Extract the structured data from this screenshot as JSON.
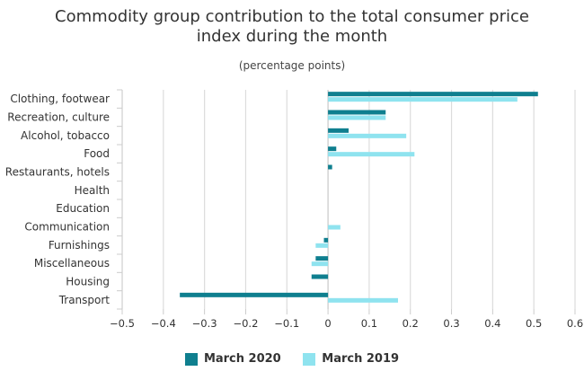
{
  "chart_data": {
    "type": "bar",
    "orientation": "horizontal",
    "title_lines": [
      "Commodity group contribution to the total consumer price",
      "index during the month"
    ],
    "subtitle": "(percentage points)",
    "categories": [
      "Clothing, footwear",
      "Recreation, culture",
      "Alcohol, tobacco",
      "Food",
      "Restaurants, hotels",
      "Health",
      "Education",
      "Communication",
      "Furnishings",
      "Miscellaneous",
      "Housing",
      "Transport"
    ],
    "series": [
      {
        "name": "March 2020",
        "color": "#0f7f8f",
        "values": [
          0.51,
          0.14,
          0.05,
          0.02,
          0.01,
          0.0,
          0.0,
          0.0,
          -0.01,
          -0.03,
          -0.04,
          -0.36
        ]
      },
      {
        "name": "March 2019",
        "color": "#8fe3ef",
        "values": [
          0.46,
          0.14,
          0.19,
          0.21,
          0.0,
          0.0,
          0.0,
          0.03,
          -0.03,
          -0.04,
          0.0,
          0.17
        ]
      }
    ],
    "xlim": [
      -0.5,
      0.6
    ],
    "xticks": [
      "−0.5",
      "−0.4",
      "−0.3",
      "−0.2",
      "−0.1",
      "0",
      "0.1",
      "0.2",
      "0.3",
      "0.4",
      "0.5",
      "0.6"
    ],
    "grid": true,
    "legend_position": "bottom"
  }
}
